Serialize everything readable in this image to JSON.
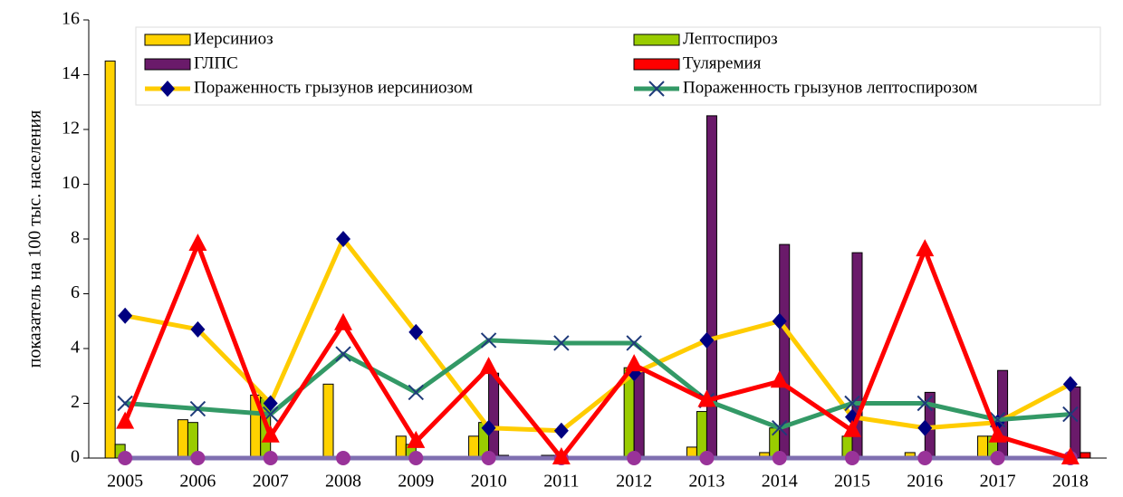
{
  "chart_data": {
    "type": "bar-line",
    "y_label": "показатель на 100 тыс. населения",
    "categories": [
      "2005",
      "2006",
      "2007",
      "2008",
      "2009",
      "2010",
      "2011",
      "2012",
      "2013",
      "2014",
      "2015",
      "2016",
      "2017",
      "2018"
    ],
    "ylim": [
      0,
      16
    ],
    "yticks": [
      0,
      2,
      4,
      6,
      8,
      10,
      12,
      14,
      16
    ],
    "series": [
      {
        "name": "Иерсиниоз",
        "kind": "bar",
        "color": "#ffd200",
        "values": [
          14.5,
          1.4,
          2.3,
          2.7,
          0.8,
          0.8,
          0.1,
          0,
          0.4,
          0.2,
          0,
          0.2,
          0.8,
          0
        ]
      },
      {
        "name": "Лептоспироз",
        "kind": "bar",
        "color": "#99cc00",
        "values": [
          0.5,
          1.3,
          2.2,
          0,
          0.5,
          1.3,
          0.1,
          3.3,
          1.7,
          1.1,
          0.8,
          0,
          0.8,
          0
        ]
      },
      {
        "name": "ГЛПС",
        "kind": "bar",
        "color": "#6a1a6a",
        "values": [
          0,
          0,
          0,
          0,
          0,
          3.1,
          0,
          3.3,
          12.5,
          7.8,
          7.5,
          2.4,
          3.2,
          2.6
        ]
      },
      {
        "name": "Туляремия",
        "kind": "bar",
        "color": "#ff0000",
        "values": [
          0,
          0,
          0,
          0,
          0,
          0.1,
          0,
          0,
          0,
          0,
          0,
          0,
          0,
          0.2
        ]
      },
      {
        "name": "Пораженность грызунов иерсиниозом",
        "kind": "line",
        "color": "#ffcc00",
        "marker": "diamond",
        "marker_color": "#000080",
        "values": [
          5.2,
          4.7,
          2.0,
          8.0,
          4.6,
          1.1,
          1.0,
          3.1,
          4.3,
          5.0,
          1.5,
          1.1,
          1.3,
          2.7
        ]
      },
      {
        "name": "Пораженность грызунов лептоспирозом",
        "kind": "line",
        "color": "#339966",
        "marker": "x",
        "marker_color": "#1f3a7a",
        "values": [
          2.0,
          1.8,
          1.6,
          3.8,
          2.4,
          4.3,
          4.2,
          4.2,
          2.1,
          1.1,
          2.0,
          2.0,
          1.4,
          1.6
        ]
      },
      {
        "kind": "line",
        "color": "#ff0000",
        "marker": "triangle",
        "marker_color": "#ff0000",
        "values": [
          1.3,
          7.8,
          0.8,
          4.9,
          0.6,
          3.3,
          0,
          3.4,
          2.1,
          2.8,
          1.0,
          7.6,
          0.8,
          0
        ]
      },
      {
        "kind": "line",
        "color": "#7f6fb0",
        "marker": "circle",
        "marker_color": "#993399",
        "values": [
          0,
          0,
          0,
          0,
          0,
          0,
          0,
          0,
          0,
          0,
          0,
          0,
          0,
          0
        ]
      }
    ]
  }
}
